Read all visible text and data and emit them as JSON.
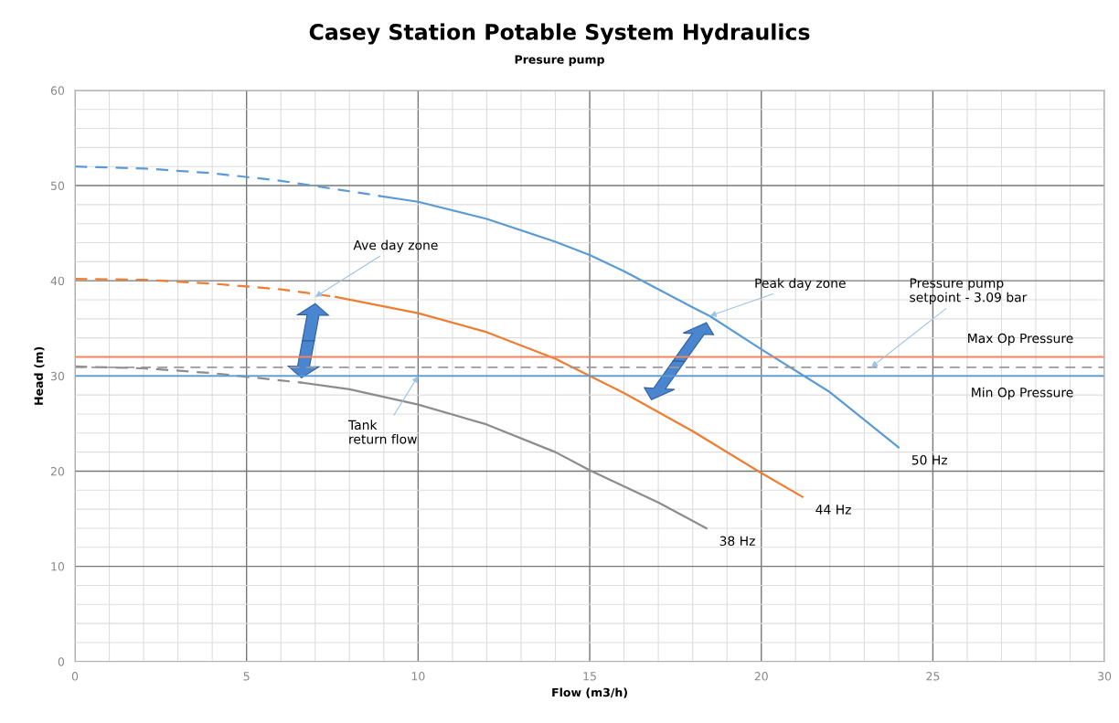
{
  "chart_data": {
    "type": "line",
    "title": "Casey Station Potable System Hydraulics",
    "subtitle": "Presure pump",
    "xlabel": "Flow (m3/h)",
    "ylabel": "Head (m)",
    "xlim": [
      0,
      30
    ],
    "xticks": [
      0,
      5,
      10,
      15,
      20,
      25,
      30
    ],
    "ylim": [
      0,
      60
    ],
    "yticks": [
      0,
      10,
      20,
      30,
      40,
      50,
      60
    ],
    "grid": true,
    "legend": false,
    "marker": "none",
    "series": [
      {
        "color": "#5b9bd5",
        "line_style": "dashed",
        "x": [
          0,
          2,
          4,
          6,
          8,
          8.9
        ],
        "values": [
          52,
          51.8,
          51.3,
          50.5,
          49.4,
          48.9
        ]
      },
      {
        "name": "50 Hz",
        "color": "#5b9bd5",
        "line_style": "solid",
        "x": [
          8.9,
          10,
          12,
          14,
          15,
          16,
          18,
          18.5,
          20,
          22,
          24
        ],
        "values": [
          48.9,
          48.3,
          46.5,
          44.1,
          42.7,
          41.0,
          37.2,
          36.3,
          32.8,
          28.3,
          22.5
        ]
      },
      {
        "color": "#ed7d31",
        "line_style": "dashed",
        "x": [
          0,
          2,
          4,
          6,
          7.6
        ],
        "values": [
          40.2,
          40.1,
          39.7,
          39.1,
          38.3
        ]
      },
      {
        "name": "44 Hz",
        "color": "#ed7d31",
        "line_style": "solid",
        "x": [
          7.6,
          10,
          12,
          14,
          15,
          16,
          18,
          20,
          21.2
        ],
        "values": [
          38.3,
          36.6,
          34.6,
          31.8,
          30.0,
          28.2,
          24.2,
          19.8,
          17.3
        ]
      },
      {
        "color": "#8c8c8c",
        "line_style": "dashed",
        "x": [
          0,
          2,
          4,
          6.6
        ],
        "values": [
          31.0,
          30.8,
          30.3,
          29.3
        ]
      },
      {
        "name": "38 Hz",
        "color": "#8c8c8c",
        "line_style": "solid",
        "x": [
          6.6,
          8,
          10,
          12,
          14,
          15,
          17,
          18.4
        ],
        "values": [
          29.3,
          28.6,
          27.0,
          24.9,
          22.0,
          20.1,
          16.7,
          14.0
        ]
      }
    ],
    "ref_lines": [
      {
        "axis": "y",
        "value": 32,
        "label": "Max Op Pressure",
        "color": "#f4845f",
        "line_style": "solid"
      },
      {
        "axis": "y",
        "value": 30.9,
        "color": "#999999",
        "line_style": "dashed"
      },
      {
        "axis": "y",
        "value": 30,
        "label": "Min Op Pressure",
        "color": "#5b9bd5",
        "line_style": "solid"
      }
    ],
    "annotations": [
      {
        "text": "Ave day zone",
        "x": 7.0,
        "y": 38.3
      },
      {
        "text": "Peak day zone",
        "x": 18.5,
        "y": 36.3
      },
      {
        "text": "Pressure pump\nsetpoint - 3.09 bar",
        "x": 23.2,
        "y": 30.9
      },
      {
        "text": "Tank\nreturn flow",
        "x": 10,
        "y": 30
      }
    ]
  }
}
